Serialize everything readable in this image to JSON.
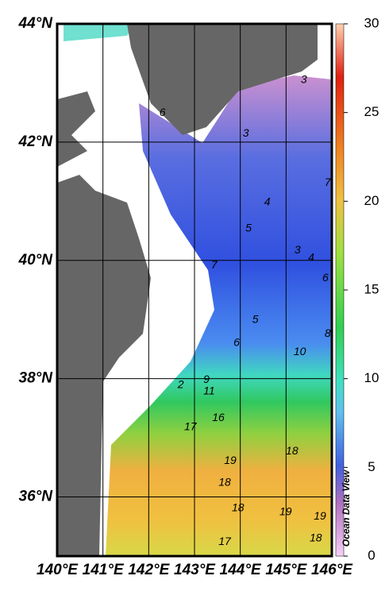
{
  "chart_data": {
    "type": "map",
    "xlim": [
      140,
      146
    ],
    "ylim": [
      35,
      44
    ],
    "xticks": [
      {
        "value": 140,
        "label": "140°E"
      },
      {
        "value": 141,
        "label": "141°E"
      },
      {
        "value": 142,
        "label": "142°E"
      },
      {
        "value": 143,
        "label": "143°E"
      },
      {
        "value": 144,
        "label": "144°E"
      },
      {
        "value": 145,
        "label": "145°E"
      },
      {
        "value": 146,
        "label": "146°E"
      }
    ],
    "yticks": [
      {
        "value": 36,
        "label": "36°N"
      },
      {
        "value": 38,
        "label": "38°N"
      },
      {
        "value": 40,
        "label": "40°N"
      },
      {
        "value": 42,
        "label": "42°N"
      },
      {
        "value": 44,
        "label": "44°N"
      }
    ],
    "grid": true,
    "colorbar": {
      "lim": [
        0,
        30
      ],
      "ticks": [
        0,
        5,
        10,
        15,
        20,
        25,
        30
      ]
    },
    "contour_labels": [
      {
        "value": 3,
        "lon": 145.39,
        "lat": 43.05
      },
      {
        "value": 6,
        "lon": 142.3,
        "lat": 42.49
      },
      {
        "value": 3,
        "lon": 144.12,
        "lat": 42.14
      },
      {
        "value": 7,
        "lon": 145.91,
        "lat": 41.31
      },
      {
        "value": 4,
        "lon": 144.59,
        "lat": 40.98
      },
      {
        "value": 5,
        "lon": 144.18,
        "lat": 40.54
      },
      {
        "value": 3,
        "lon": 145.25,
        "lat": 40.17
      },
      {
        "value": 4,
        "lon": 145.55,
        "lat": 40.04
      },
      {
        "value": 6,
        "lon": 145.86,
        "lat": 39.7
      },
      {
        "value": 7,
        "lon": 143.43,
        "lat": 39.91
      },
      {
        "value": 5,
        "lon": 144.33,
        "lat": 38.99
      },
      {
        "value": 6,
        "lon": 143.92,
        "lat": 38.6
      },
      {
        "value": 8,
        "lon": 145.91,
        "lat": 38.76
      },
      {
        "value": 10,
        "lon": 145.3,
        "lat": 38.45
      },
      {
        "value": 9,
        "lon": 143.26,
        "lat": 37.98
      },
      {
        "value": 2,
        "lon": 142.7,
        "lat": 37.89
      },
      {
        "value": 11,
        "lon": 143.32,
        "lat": 37.78
      },
      {
        "value": 16,
        "lon": 143.52,
        "lat": 37.33
      },
      {
        "value": 17,
        "lon": 142.91,
        "lat": 37.18
      },
      {
        "value": 18,
        "lon": 145.13,
        "lat": 36.77
      },
      {
        "value": 19,
        "lon": 143.78,
        "lat": 36.61
      },
      {
        "value": 18,
        "lon": 143.66,
        "lat": 36.24
      },
      {
        "value": 18,
        "lon": 143.95,
        "lat": 35.81
      },
      {
        "value": 19,
        "lon": 144.99,
        "lat": 35.74
      },
      {
        "value": 19,
        "lon": 145.74,
        "lat": 35.67
      },
      {
        "value": 18,
        "lon": 145.65,
        "lat": 35.3
      },
      {
        "value": 17,
        "lon": 143.66,
        "lat": 35.24
      }
    ],
    "watermark": "Ocean Data View"
  }
}
